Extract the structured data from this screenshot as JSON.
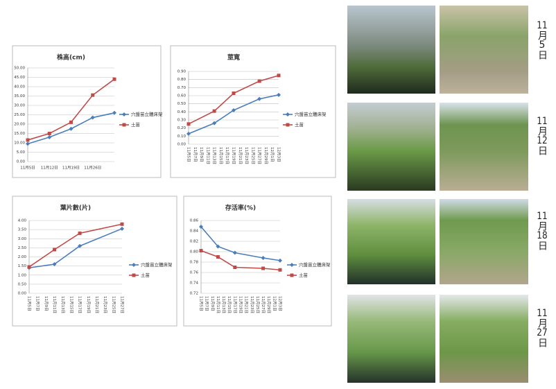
{
  "chart_data": [
    {
      "type": "line",
      "title": "株高(cm)",
      "categories": [
        "11月5日",
        "11月12日",
        "11月19日",
        "11月26日",
        null
      ],
      "series": [
        {
          "name": "穴盤苗立體床架",
          "color": "#4a7ebb",
          "values": [
            9.5,
            13,
            17.5,
            23.5,
            26
          ]
        },
        {
          "name": "土苗",
          "color": "#be4b48",
          "values": [
            11.5,
            15,
            21,
            35.5,
            44
          ]
        }
      ],
      "ylim": [
        0,
        50
      ],
      "yticks": [
        {
          "value": 0,
          "label": "0.00"
        },
        {
          "value": 5,
          "label": "5.00"
        },
        {
          "value": 10,
          "label": "10.00"
        },
        {
          "value": 15,
          "label": "15.00"
        },
        {
          "value": 20,
          "label": "20.00"
        },
        {
          "value": 25,
          "label": "25.00"
        },
        {
          "value": 30,
          "label": "30.00"
        },
        {
          "value": 35,
          "label": "35.00"
        },
        {
          "value": 40,
          "label": "40.00"
        },
        {
          "value": 45,
          "label": "45.00"
        },
        {
          "value": 50,
          "label": "50.00"
        }
      ],
      "grid": true,
      "legend": "right"
    },
    {
      "type": "line",
      "title": "莖寬",
      "categories": [
        "11月5日",
        "11月7日",
        "11月9日",
        "11月11日",
        "11月13日",
        "11月15日",
        "11月17日",
        "11月19日",
        "11月21日",
        "11月23日",
        "11月25日",
        "11月27日",
        "11月29日",
        "12月1日",
        "12月3日"
      ],
      "x": [
        "11月5日",
        "11月13日",
        "11月19日",
        "11月27日",
        "12月3日"
      ],
      "series": [
        {
          "name": "穴盤苗立體床架",
          "color": "#4a7ebb",
          "values": [
            0.13,
            0.26,
            0.42,
            0.56,
            0.61
          ]
        },
        {
          "name": "土苗",
          "color": "#be4b48",
          "values": [
            0.25,
            0.41,
            0.63,
            0.78,
            0.85
          ]
        }
      ],
      "ylim": [
        0,
        0.9
      ],
      "yticks": [
        {
          "value": 0,
          "label": "0.00"
        },
        {
          "value": 0.1,
          "label": "0.10"
        },
        {
          "value": 0.2,
          "label": "0.20"
        },
        {
          "value": 0.3,
          "label": "0.30"
        },
        {
          "value": 0.4,
          "label": "0.40"
        },
        {
          "value": 0.5,
          "label": "0.50"
        },
        {
          "value": 0.6,
          "label": "0.60"
        },
        {
          "value": 0.7,
          "label": "0.70"
        },
        {
          "value": 0.8,
          "label": "0.80"
        },
        {
          "value": 0.9,
          "label": "0.90"
        }
      ],
      "grid": true,
      "legend": "right"
    },
    {
      "type": "line",
      "title": "葉片數(片)",
      "categories": [
        "11月5日",
        "11月7日",
        "11月9日",
        "11月11日",
        "11月13日",
        "11月15日",
        "11月17日",
        "11月19日",
        "11月21日",
        "11月23日",
        "11月25日",
        "11月27日"
      ],
      "x": [
        "11月5日",
        "11月11日",
        "11月17日",
        "11月27日"
      ],
      "series": [
        {
          "name": "穴盤苗立體床架",
          "color": "#4a7ebb",
          "values": [
            1.4,
            1.6,
            2.6,
            3.55
          ]
        },
        {
          "name": "土苗",
          "color": "#be4b48",
          "values": [
            1.45,
            2.4,
            3.3,
            3.8
          ]
        }
      ],
      "ylim": [
        0,
        4
      ],
      "yticks": [
        {
          "value": 0,
          "label": "0.00"
        },
        {
          "value": 0.5,
          "label": "0.50"
        },
        {
          "value": 1,
          "label": "1.00"
        },
        {
          "value": 1.5,
          "label": "1.50"
        },
        {
          "value": 2,
          "label": "2.00"
        },
        {
          "value": 2.5,
          "label": "2.50"
        },
        {
          "value": 3,
          "label": "3.00"
        },
        {
          "value": 3.5,
          "label": "3.50"
        },
        {
          "value": 4,
          "label": "4.00"
        }
      ],
      "grid": true,
      "legend": "right"
    },
    {
      "type": "line",
      "title": "存活率(%)",
      "categories": [
        "11月5日",
        "11月7日",
        "11月9日",
        "11月11日",
        "11月13日",
        "11月15日",
        "11月17日",
        "11月19日",
        "11月21日",
        "11月23日",
        "11月25日",
        "11月27日",
        "11月29日",
        "12月1日",
        "12月3日"
      ],
      "x": [
        "11月5日",
        "11月11日",
        "11月17日",
        "11月27日",
        "12月3日"
      ],
      "series": [
        {
          "name": "穴盤苗立體床架",
          "color": "#4a7ebb",
          "values": [
            0.848,
            0.81,
            0.798,
            0.788,
            0.783
          ]
        },
        {
          "name": "土苗",
          "color": "#be4b48",
          "values": [
            0.802,
            0.79,
            0.77,
            0.768,
            0.765
          ]
        }
      ],
      "ylim": [
        0.72,
        0.86
      ],
      "yticks": [
        0.72,
        0.74,
        0.76,
        0.78,
        {
          "value": 0.8,
          "label": "0.80"
        },
        0.82,
        0.84,
        0.86
      ],
      "grid": true,
      "legend": "right"
    }
  ],
  "photo_labels": [
    "11月5日",
    "11月12日",
    "11月18日",
    "11月27日"
  ]
}
